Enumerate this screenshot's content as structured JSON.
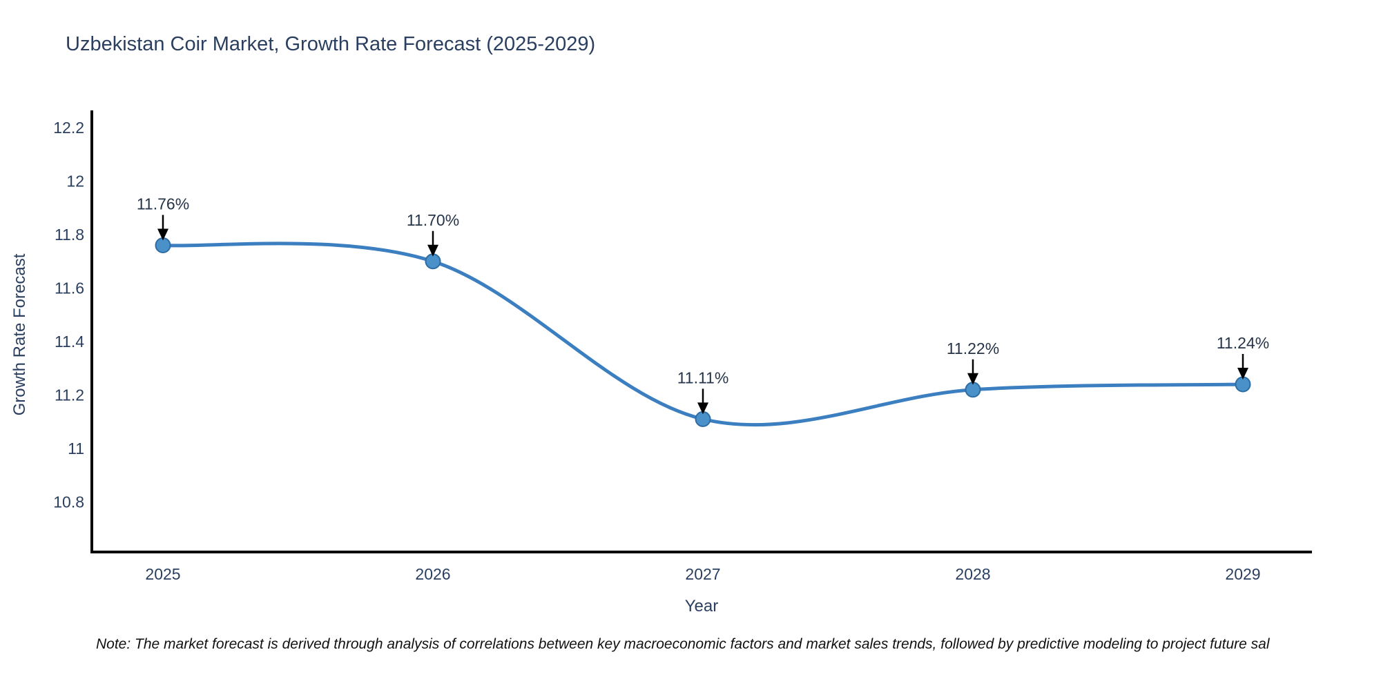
{
  "title": "Uzbekistan Coir Market, Growth Rate Forecast (2025-2029)",
  "note": "Note: The market forecast is derived through analysis of correlations between key macroeconomic factors and market sales trends, followed by predictive modeling to project future sal",
  "chart_data": {
    "type": "line",
    "title": "Uzbekistan Coir Market, Growth Rate Forecast (2025-2029)",
    "xlabel": "Year",
    "ylabel": "Growth Rate Forecast",
    "x": [
      2025,
      2026,
      2027,
      2028,
      2029
    ],
    "x_tick_labels": [
      "2025",
      "2026",
      "2027",
      "2028",
      "2029"
    ],
    "values": [
      11.76,
      11.7,
      11.11,
      11.22,
      11.24
    ],
    "point_labels": [
      "11.76%",
      "11.70%",
      "11.11%",
      "11.22%",
      "11.24%"
    ],
    "yticks": [
      10.8,
      11,
      11.2,
      11.4,
      11.6,
      11.8,
      12,
      12.2
    ],
    "ytick_labels": [
      "10.8",
      "11",
      "11.2",
      "11.4",
      "11.6",
      "11.8",
      "12",
      "12.2"
    ],
    "xlim": [
      2024.74,
      2029.26
    ],
    "ylim": [
      10.61,
      12.27
    ],
    "grid": false,
    "legend": "none",
    "curve": "spline",
    "annotation_style": "down-arrow",
    "colors": {
      "line": "#3c7fc0",
      "marker_fill": "#4a90c9",
      "marker_edge": "#2e6da4",
      "axis": "#000000",
      "text": "#2a3f5f",
      "annotation_arrow": "#000000",
      "background": "#ffffff"
    }
  }
}
